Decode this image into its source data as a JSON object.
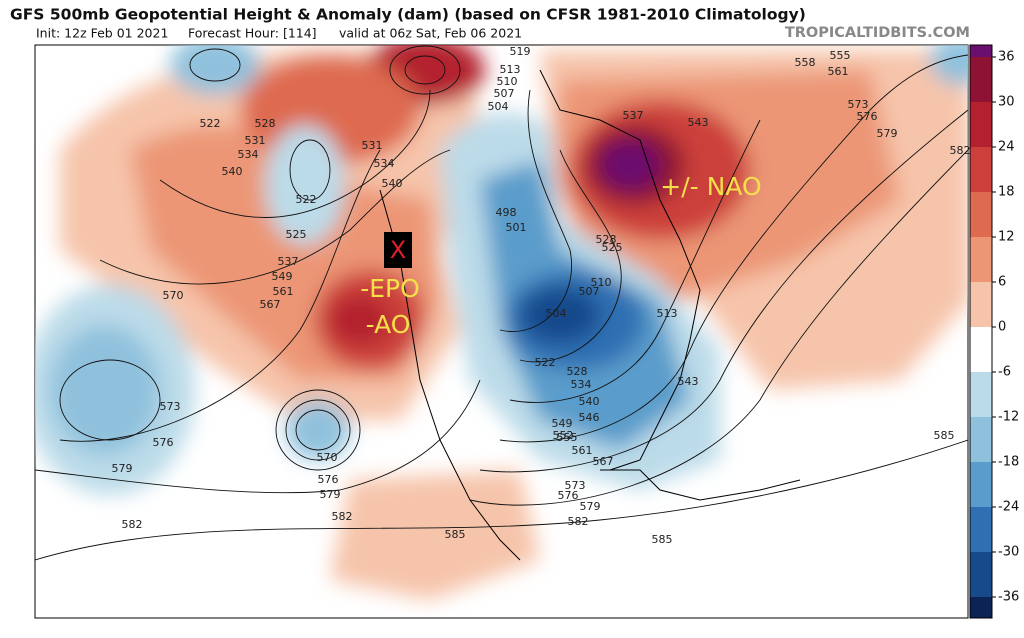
{
  "header": {
    "title": "GFS 500mb Geopotential Height & Anomaly (dam) (based on CFSR 1981-2010 Climatology)",
    "init": "Init: 12z Feb 01 2021",
    "forecast_hour": "Forecast Hour: [114]",
    "valid": "valid at 06z Sat, Feb 06 2021",
    "site": "TROPICALTIDBITS.COM"
  },
  "annotations": {
    "x_mark": "X",
    "epo": "-EPO",
    "ao": "-AO",
    "nao": "+/- NAO"
  },
  "colorbar": {
    "ticks": [
      36,
      30,
      24,
      18,
      12,
      6,
      0,
      -6,
      -12,
      -18,
      -24,
      -30,
      -36
    ],
    "colors": [
      "#6a0f6e",
      "#8e1233",
      "#b3202e",
      "#cc3f3a",
      "#de6a4f",
      "#ec9676",
      "#f6c4aa",
      "#ffffff",
      "#bcdbe9",
      "#8fc1dd",
      "#5a9ccb",
      "#2f70b2",
      "#174a8b",
      "#0b2455"
    ]
  },
  "contour_labels": [
    519,
    513,
    510,
    507,
    504,
    537,
    543,
    558,
    561,
    555,
    573,
    576,
    579,
    582,
    522,
    528,
    531,
    534,
    540,
    531,
    534,
    540,
    522,
    525,
    537,
    549,
    561,
    567,
    570,
    573,
    576,
    579,
    582,
    570,
    576,
    579,
    582,
    585,
    498,
    501,
    510,
    507,
    504,
    513,
    522,
    528,
    534,
    540,
    546,
    549,
    552,
    555,
    561,
    567,
    573,
    576,
    579,
    582,
    543,
    585,
    585,
    525,
    528
  ]
}
